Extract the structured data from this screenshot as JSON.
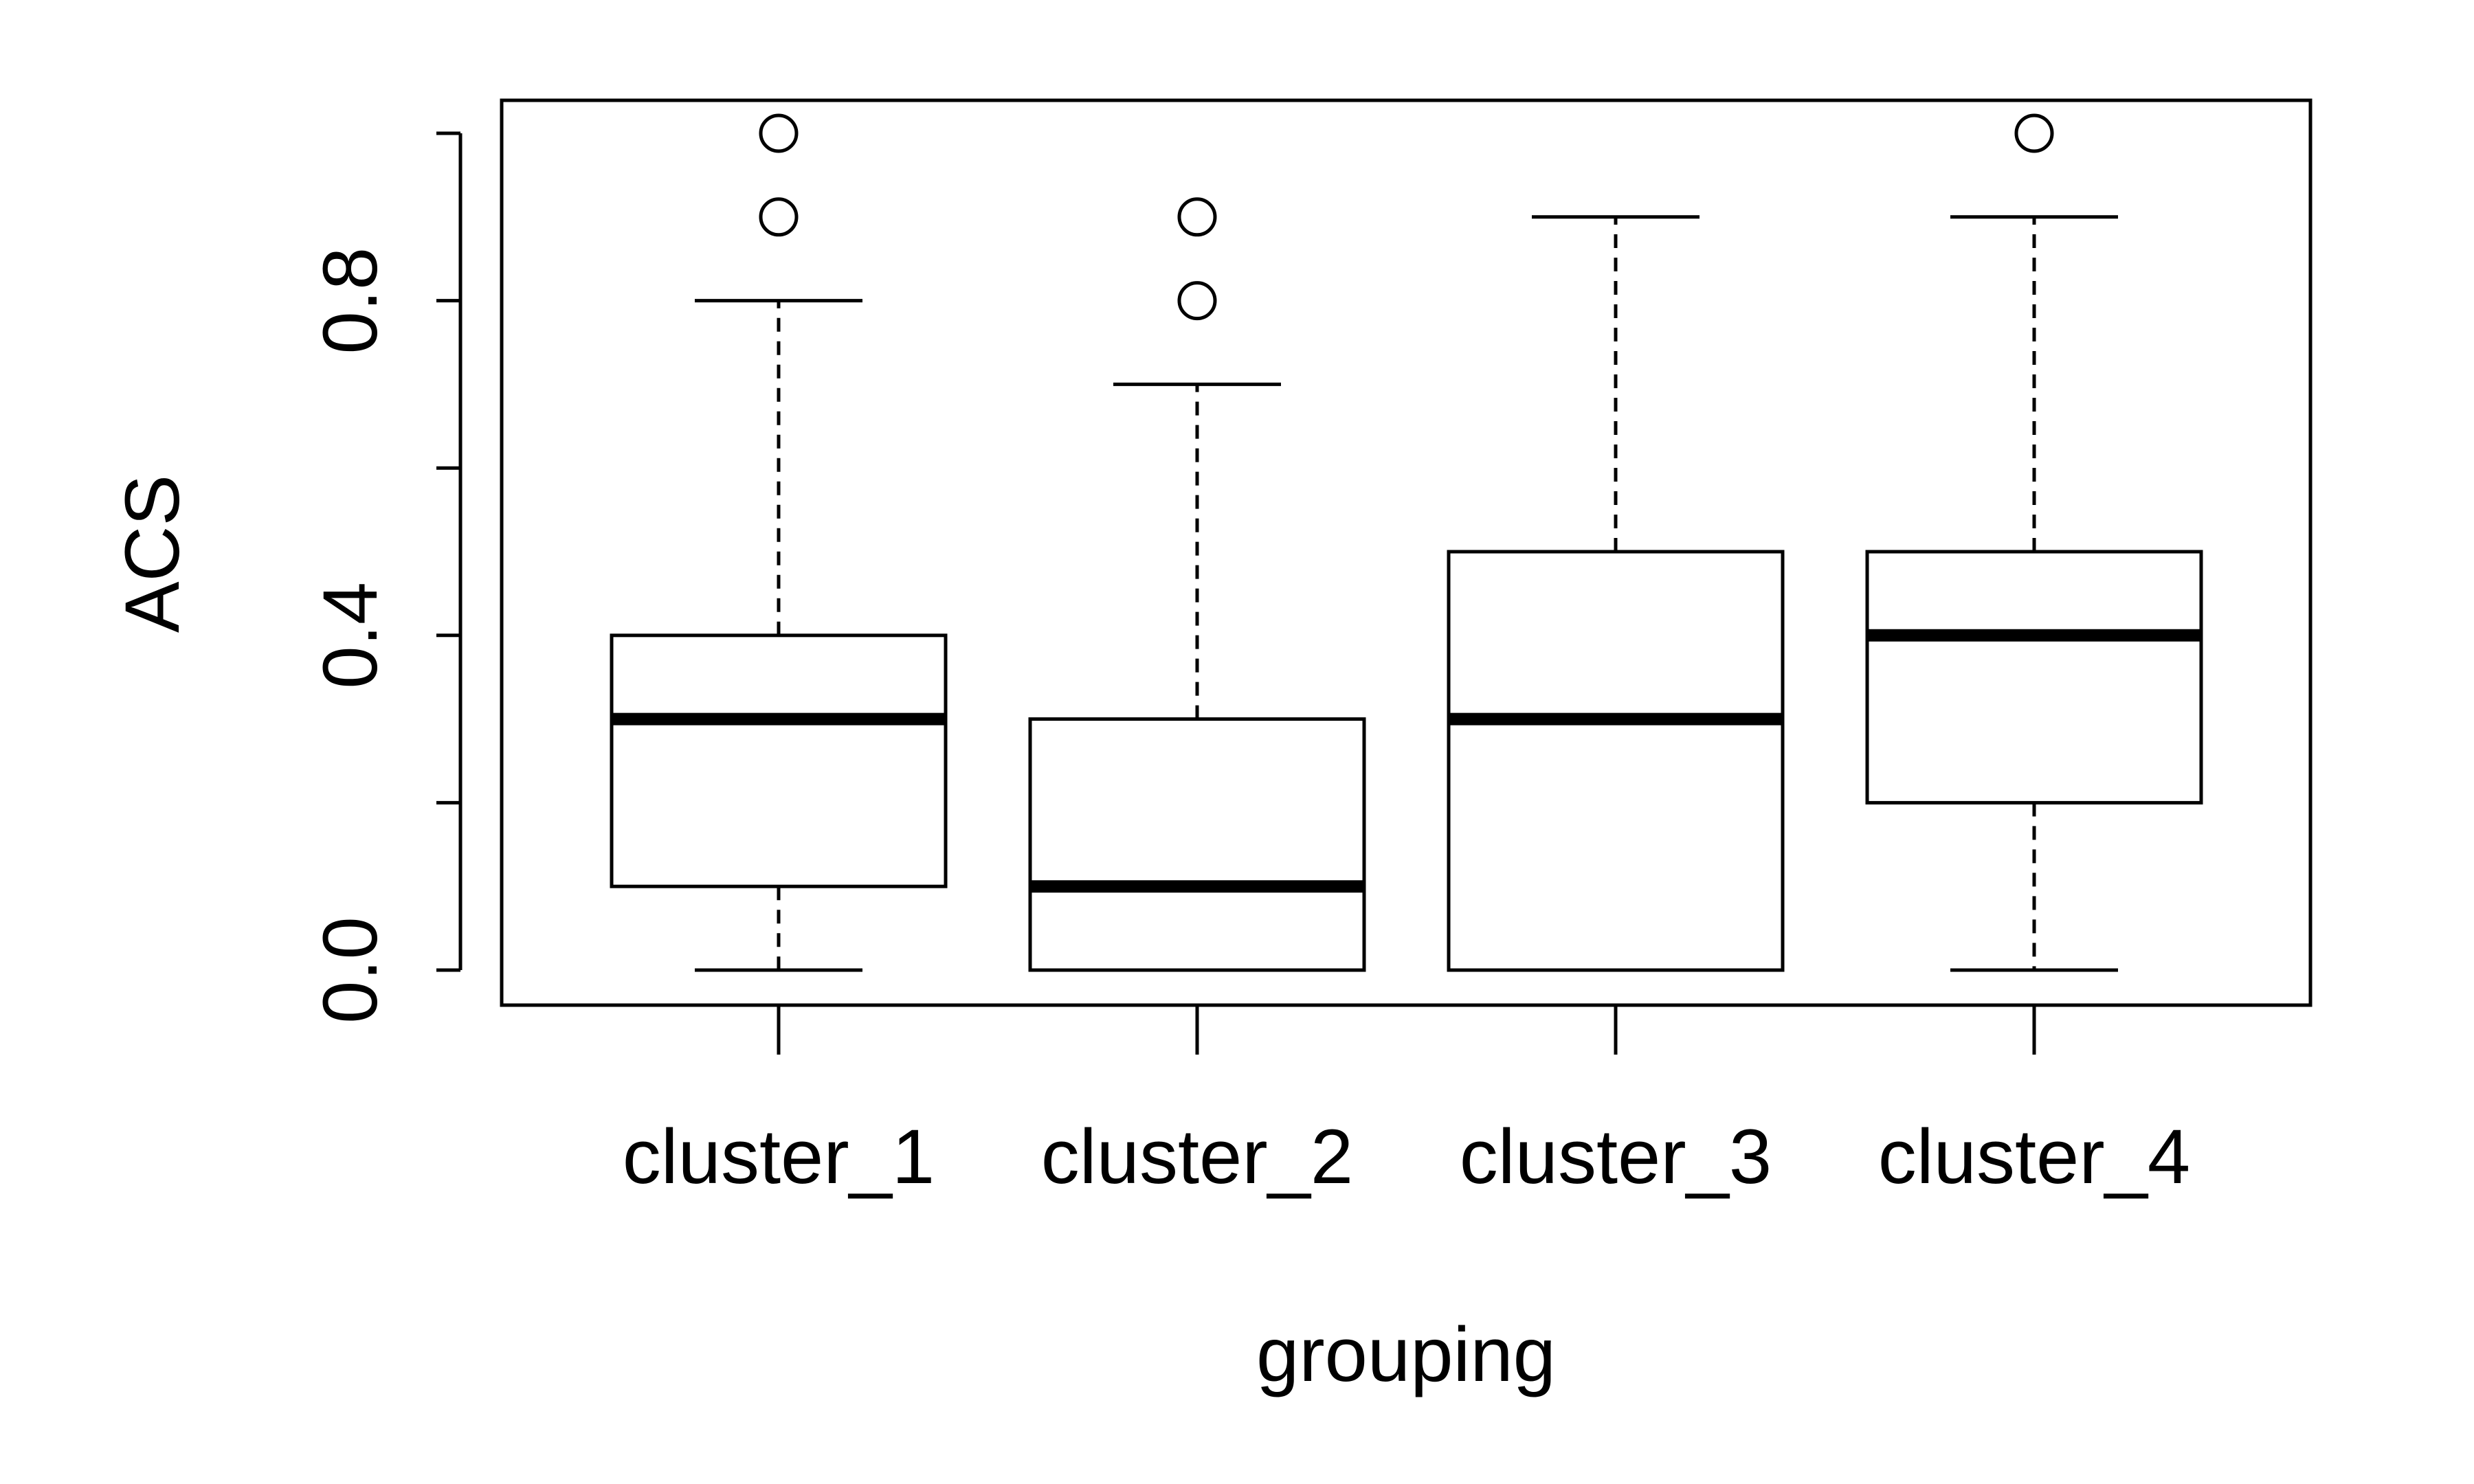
{
  "chart_data": {
    "type": "boxplot",
    "title": "",
    "xlabel": "grouping",
    "ylabel": "ACS",
    "ylim": [
      -0.04,
      1.04
    ],
    "yticks": [
      0.0,
      0.2,
      0.4,
      0.6,
      0.8,
      1.0
    ],
    "ytick_labels": [
      "0.0",
      "",
      "0.4",
      "",
      "0.8",
      ""
    ],
    "grid": false,
    "legend": "none",
    "colors": {
      "line": "#000000",
      "fill": "#ffffff"
    },
    "categories": [
      "cluster_1",
      "cluster_2",
      "cluster_3",
      "cluster_4"
    ],
    "boxes": [
      {
        "name": "cluster_1",
        "whisker_low": 0.0,
        "q1": 0.1,
        "median": 0.3,
        "q3": 0.4,
        "whisker_high": 0.8,
        "outliers": [
          0.9,
          1.0
        ]
      },
      {
        "name": "cluster_2",
        "whisker_low": 0.0,
        "q1": 0.0,
        "median": 0.1,
        "q3": 0.3,
        "whisker_high": 0.7,
        "outliers": [
          0.8,
          0.9
        ]
      },
      {
        "name": "cluster_3",
        "whisker_low": 0.0,
        "q1": 0.0,
        "median": 0.3,
        "q3": 0.5,
        "whisker_high": 0.9,
        "outliers": []
      },
      {
        "name": "cluster_4",
        "whisker_low": 0.0,
        "q1": 0.2,
        "median": 0.4,
        "q3": 0.5,
        "whisker_high": 0.9,
        "outliers": [
          1.0
        ]
      }
    ]
  }
}
